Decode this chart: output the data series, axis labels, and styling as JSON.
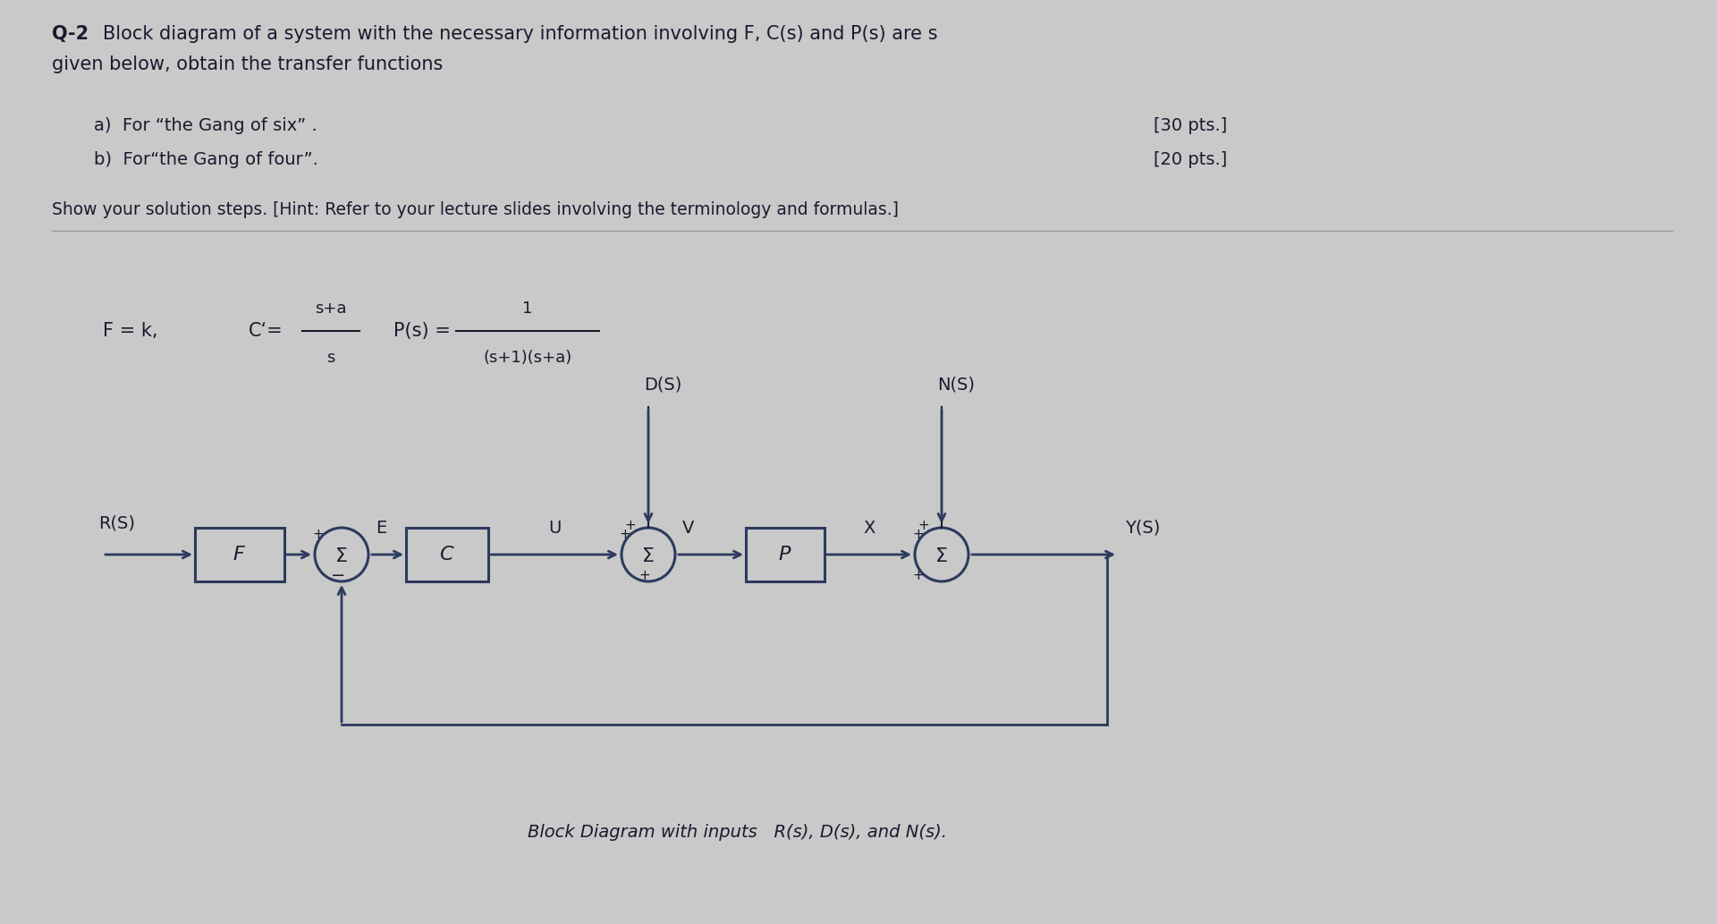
{
  "bg_color": "#c8c8c8",
  "text_color": "#1a1a2e",
  "line_color": "#2c3a5e",
  "title_q2": "Q-2",
  "title_rest": "   Block diagram of a system with the necessary information involving F, C(s) and P(s) are s",
  "title_line2": "given below, obtain the transfer functions",
  "item_a": "a)  For “the Gang of six” .",
  "item_b": "b)  For“the Gang of four”.",
  "pts_a": "[30 pts.]",
  "pts_b": "[20 pts.]",
  "hint": "Show your solution steps. [Hint: Refer to your lecture slides involving the terminology and formulas.]",
  "caption": "Block Diagram with inputs   R(s), D(s), and N(s).",
  "formula_fk": "F = k,",
  "formula_c_lhs": "C‘=",
  "formula_c_num": "s+a",
  "formula_c_den": "s",
  "formula_p_lhs": "P(s) =",
  "formula_p_num": "1",
  "formula_p_den": "(s +1)(s+a)",
  "label_DS": "D(S)",
  "label_NS": "N(S)",
  "label_RS": "R(S)",
  "label_YS": "Y(S)",
  "label_E": "E",
  "label_U": "U",
  "label_V": "V",
  "label_X": "X",
  "label_F": "F",
  "label_C": "C",
  "label_P": "P",
  "label_sigma": "Σ"
}
